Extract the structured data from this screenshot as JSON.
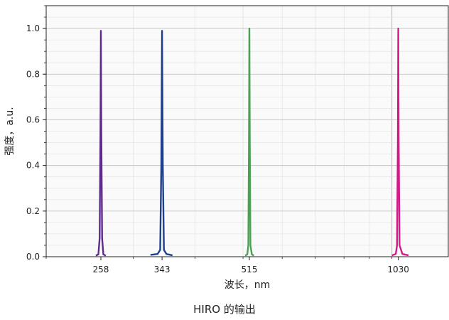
{
  "chart_data": {
    "type": "line",
    "title": "",
    "xlabel": "波长，nm",
    "ylabel": "强度，a.u.",
    "x_scale": "log",
    "xlim": [
      200,
      1300
    ],
    "ylim": [
      0,
      1.1
    ],
    "x_ticks": [
      258,
      343,
      515,
      1030
    ],
    "y_ticks": [
      0.0,
      0.2,
      0.4,
      0.6,
      0.8,
      1.0
    ],
    "y_tick_labels": [
      "0.0",
      "0.2",
      "0.4",
      "0.6",
      "0.8",
      "1.0"
    ],
    "grid": true,
    "legend": "none",
    "series": [
      {
        "color": "#5e2a8c",
        "peak_x": 258,
        "peak_y": 0.99,
        "x": [
          252,
          255,
          256.5,
          257.5,
          258,
          258.5,
          259.5,
          261,
          264
        ],
        "y": [
          0.005,
          0.01,
          0.08,
          0.55,
          0.99,
          0.55,
          0.08,
          0.01,
          0.005
        ]
      },
      {
        "color": "#1f3f8c",
        "peak_x": 343,
        "peak_y": 0.99,
        "x": [
          325,
          336,
          340,
          341.8,
          343,
          344.2,
          346,
          350,
          360
        ],
        "y": [
          0.008,
          0.012,
          0.03,
          0.4,
          0.99,
          0.4,
          0.03,
          0.012,
          0.006
        ]
      },
      {
        "color": "#4aa152",
        "peak_x": 515,
        "peak_y": 1.0,
        "x": [
          505,
          510,
          512.5,
          514,
          515,
          516,
          517.5,
          521,
          526
        ],
        "y": [
          0.005,
          0.01,
          0.05,
          0.5,
          1.0,
          0.5,
          0.05,
          0.01,
          0.005
        ]
      },
      {
        "color": "#d6198a",
        "peak_x": 1030,
        "peak_y": 1.0,
        "x": [
          1000,
          1018,
          1024,
          1028,
          1030,
          1032,
          1036,
          1050,
          1080
        ],
        "y": [
          0.006,
          0.012,
          0.05,
          0.5,
          1.0,
          0.5,
          0.05,
          0.012,
          0.006
        ]
      }
    ]
  },
  "caption": "HIRO 的输出"
}
